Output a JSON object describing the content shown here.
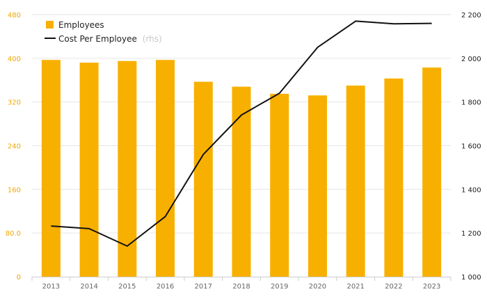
{
  "chart_data": {
    "type": "bar",
    "categories": [
      "2013",
      "2014",
      "2015",
      "2016",
      "2017",
      "2018",
      "2019",
      "2020",
      "2021",
      "2022",
      "2023"
    ],
    "series": [
      {
        "name": "Employees",
        "type": "bar",
        "axis": "left",
        "color": "#f8b000",
        "values": [
          397,
          392,
          395,
          397,
          357,
          348,
          335,
          332,
          350,
          363,
          383
        ]
      },
      {
        "name": "Cost Per Employee",
        "legend_note": "(rhs)",
        "type": "line",
        "axis": "right",
        "color": "#111111",
        "values": [
          1232,
          1220,
          1140,
          1275,
          1560,
          1740,
          1840,
          2050,
          2170,
          2158,
          2160
        ]
      }
    ],
    "y_left": {
      "min": 0,
      "max": 480,
      "ticks": [
        "0",
        "80.0",
        "160",
        "240",
        "320",
        "400",
        "480"
      ]
    },
    "y_right": {
      "min": 1000,
      "max": 2200,
      "ticks": [
        "1 000",
        "1 200",
        "1 400",
        "1 600",
        "1 800",
        "2 000",
        "2 200"
      ]
    },
    "grid": true,
    "legend_position": "top-left"
  }
}
